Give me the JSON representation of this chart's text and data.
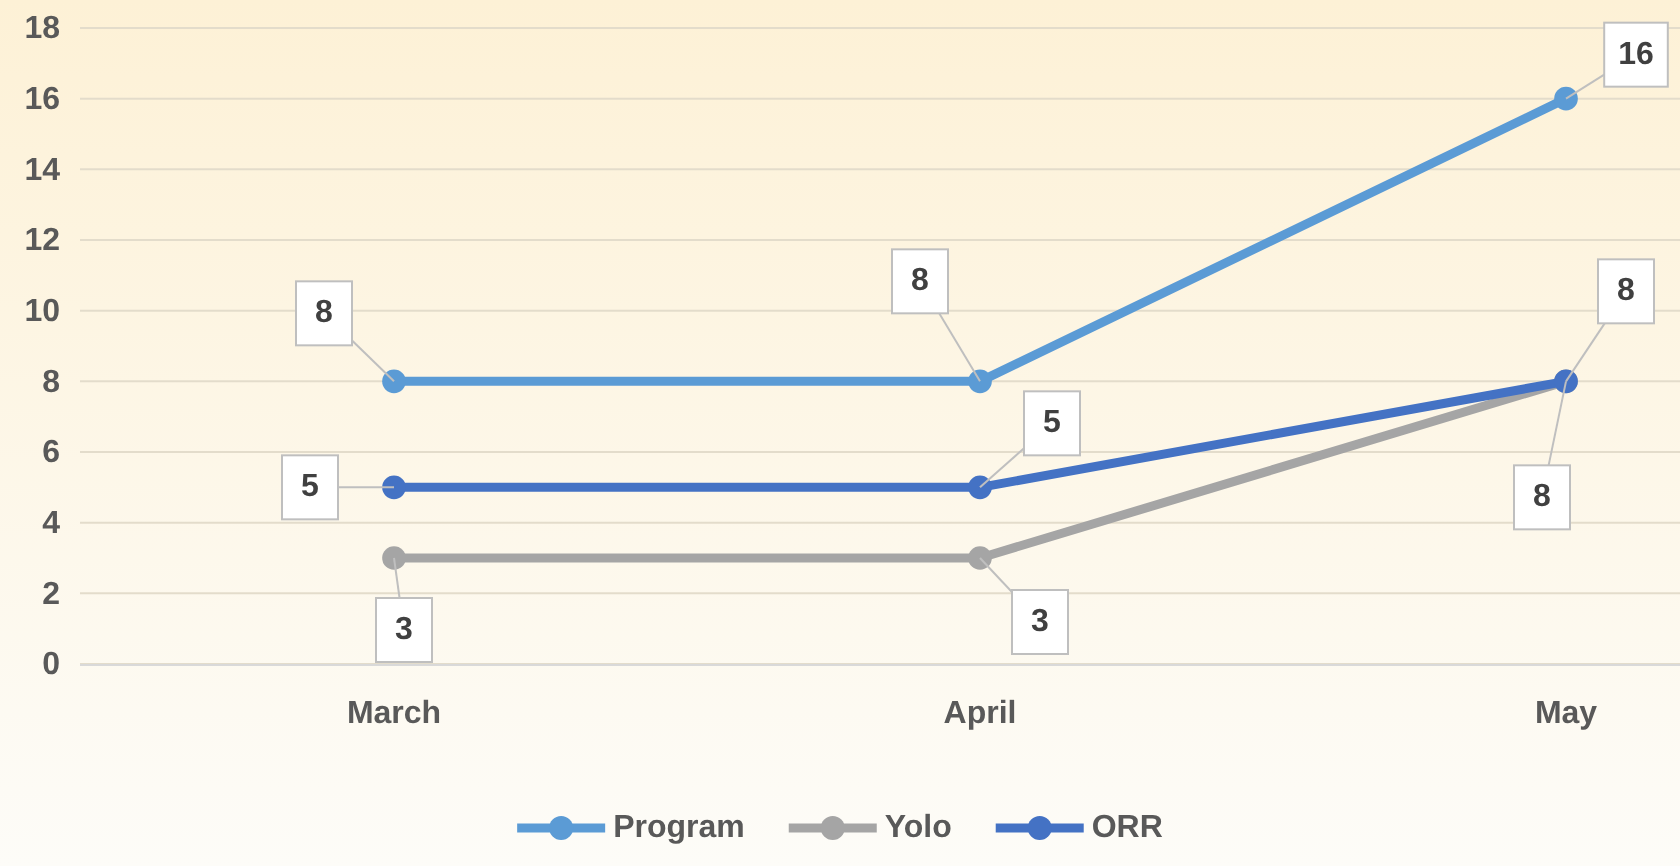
{
  "chart_data": {
    "type": "line",
    "categories": [
      "March",
      "April",
      "May"
    ],
    "series": [
      {
        "name": "Program",
        "color": "#5b9bd5",
        "values": [
          8,
          8,
          16
        ]
      },
      {
        "name": "Yolo",
        "color": "#a5a5a5",
        "values": [
          3,
          3,
          8
        ]
      },
      {
        "name": "ORR",
        "color": "#4472c4",
        "values": [
          5,
          5,
          8
        ]
      }
    ],
    "ylim": [
      0,
      18
    ],
    "yticks": [
      0,
      2,
      4,
      6,
      8,
      10,
      12,
      14,
      16,
      18
    ],
    "grid": "y",
    "legend": "bottom",
    "marker": "circle",
    "line_style": "solid",
    "data_labels": true
  }
}
